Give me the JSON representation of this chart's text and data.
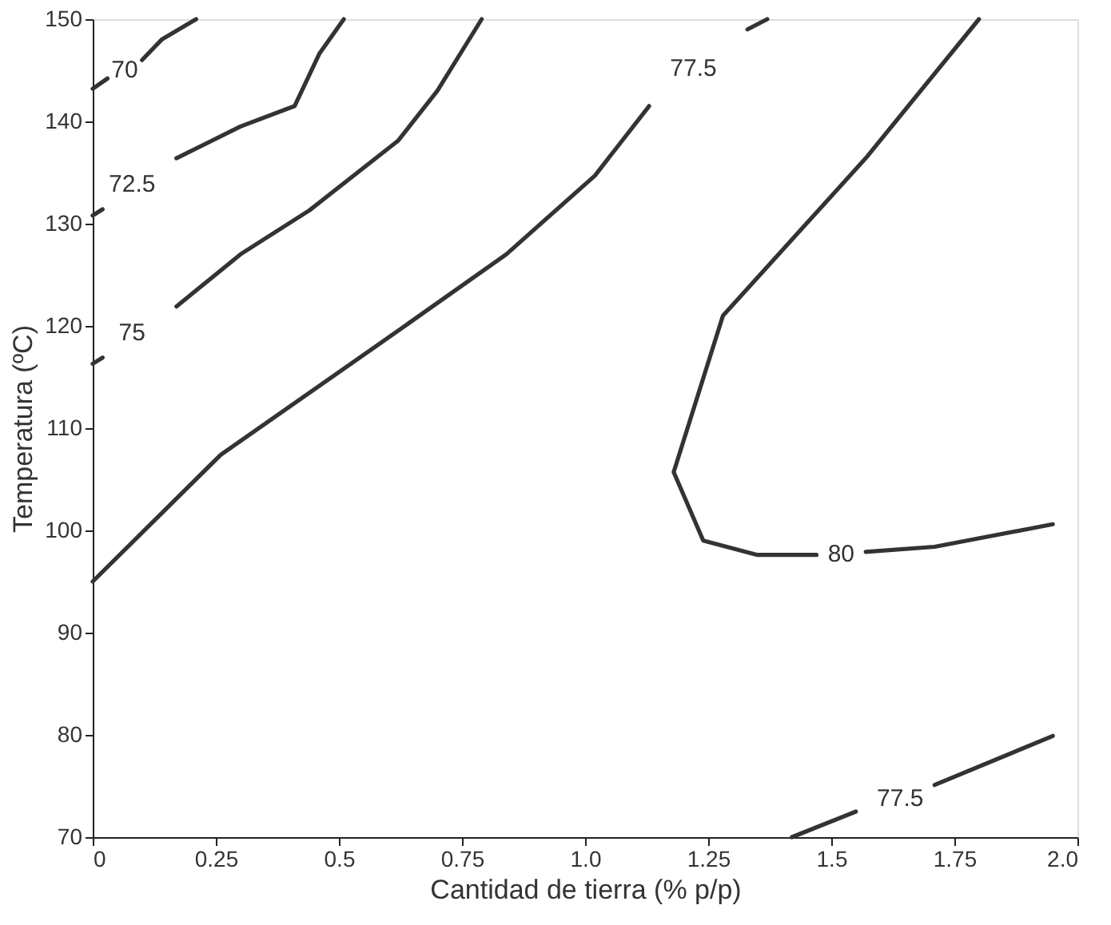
{
  "chart_data": {
    "type": "line",
    "xlabel": "Cantidad de tierra (% p/p)",
    "ylabel": "Temperatura (ºC)",
    "xlim": [
      0,
      2.0
    ],
    "xticks": [
      0,
      0.25,
      0.5,
      0.75,
      {
        "value": 1,
        "label": "1.0"
      },
      1.25,
      1.5,
      1.75,
      {
        "value": 2,
        "label": "2.0"
      }
    ],
    "ylim": [
      70,
      150
    ],
    "yticks": [
      70,
      80,
      90,
      100,
      110,
      120,
      130,
      140,
      150
    ],
    "grid": false,
    "marker": "none",
    "line_style": "solid",
    "series": [
      {
        "name": "70",
        "color": "#333333",
        "x": [
          0,
          0.03,
          0.065,
          0.1,
          0.14,
          0.21
        ],
        "values": [
          143.2,
          144.2,
          null,
          146,
          148,
          150
        ]
      },
      {
        "name": "72.5",
        "color": "#333333",
        "x": [
          0,
          0.02,
          0.08,
          0.17,
          0.3,
          0.41,
          0.46,
          0.51
        ],
        "values": [
          130.8,
          131.4,
          null,
          136.4,
          139.5,
          141.5,
          146.6,
          150
        ]
      },
      {
        "name": "75",
        "color": "#333333",
        "x": [
          0,
          0.02,
          0.08,
          0.17,
          0.3,
          0.44,
          0.62,
          0.7,
          0.79
        ],
        "values": [
          116.3,
          116.9,
          null,
          121.9,
          127,
          131.3,
          138.1,
          143,
          150
        ]
      },
      {
        "name": "77.5",
        "color": "#333333",
        "x": [
          0,
          0.26,
          0.59,
          0.84,
          1.02,
          1.13,
          1.22,
          1.33,
          1.37
        ],
        "values": [
          95,
          107.4,
          118.5,
          127,
          134.7,
          141.5,
          null,
          149,
          150
        ]
      },
      {
        "name": "80",
        "color": "#333333",
        "x": [
          1.8,
          1.57,
          1.28,
          1.18,
          1.24,
          1.35,
          1.47,
          1.52,
          1.57,
          1.71,
          1.95
        ],
        "values": [
          150,
          136.4,
          121,
          105.7,
          99,
          97.6,
          97.6,
          null,
          97.9,
          98.4,
          100.6
        ]
      },
      {
        "name": "77.5",
        "color": "#333333",
        "x": [
          1.42,
          1.55,
          1.64,
          1.71,
          1.95
        ],
        "values": [
          70,
          72.5,
          null,
          75.1,
          79.9
        ]
      }
    ]
  }
}
